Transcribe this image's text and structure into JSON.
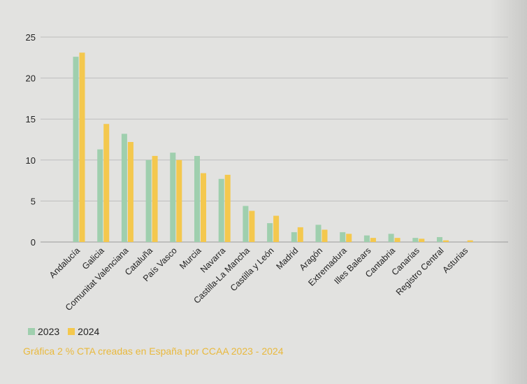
{
  "chart_data": {
    "type": "bar",
    "title": "",
    "xlabel": "",
    "ylabel": "",
    "ylim": [
      0,
      25
    ],
    "yticks": [
      0,
      5,
      10,
      15,
      20,
      25
    ],
    "grid": true,
    "legend_position": "bottom-left",
    "categories": [
      "Andalucía",
      "Galicia",
      "Comunitat Valenciana",
      "Cataluña",
      "País Vasco",
      "Murcia",
      "Navarra",
      "Castilla-La Mancha",
      "Castilla y León",
      "Madrid",
      "Aragón",
      "Extremadura",
      "Illes Balears",
      "Cantabria",
      "Canarias",
      "Registro Central",
      "Asturias"
    ],
    "series": [
      {
        "name": "2023",
        "color": "#9fcfae",
        "values": [
          22.6,
          11.3,
          13.2,
          10.0,
          10.9,
          10.5,
          7.7,
          4.4,
          2.3,
          1.2,
          2.1,
          1.2,
          0.8,
          1.0,
          0.5,
          0.6,
          0.0
        ]
      },
      {
        "name": "2024",
        "color": "#f4c84e",
        "values": [
          23.1,
          14.4,
          12.2,
          10.5,
          10.0,
          8.4,
          8.2,
          3.8,
          3.2,
          1.8,
          1.5,
          1.0,
          0.5,
          0.5,
          0.4,
          0.2,
          0.2
        ]
      }
    ]
  },
  "caption": "Gráfica 2 % CTA creadas en España por CCAA 2023 - 2024"
}
